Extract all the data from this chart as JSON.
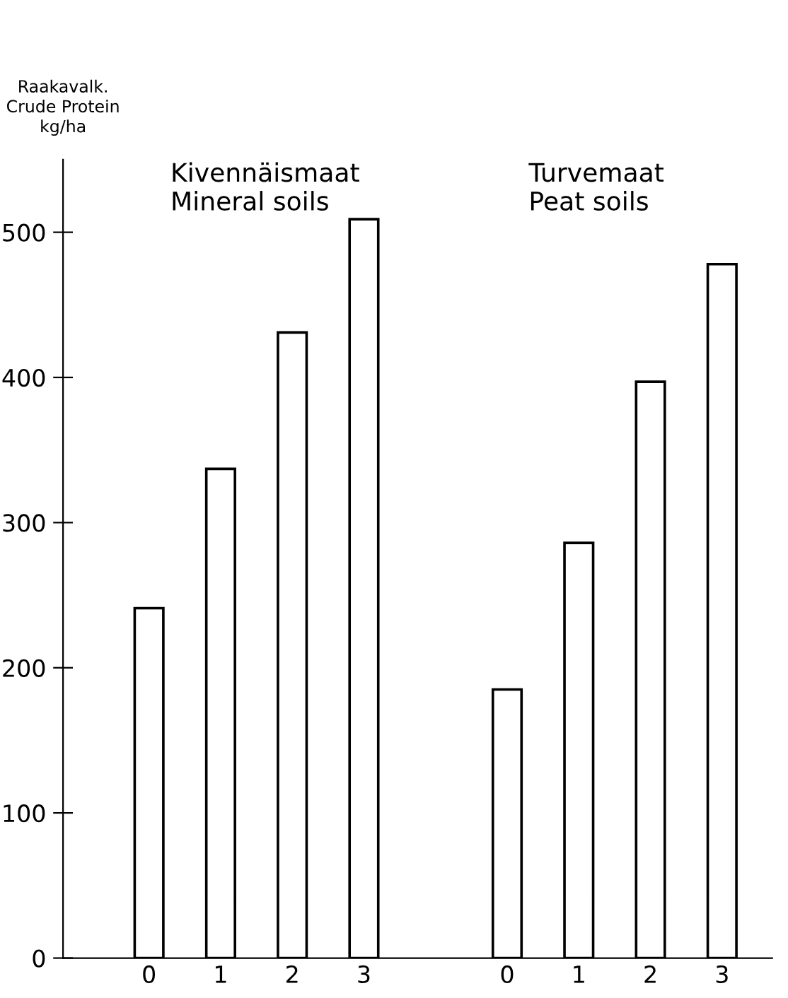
{
  "chart_data": {
    "type": "bar",
    "ylabel": "Raakavalk.\nCrude Protein\nkg/ha",
    "categories": [
      "0",
      "1",
      "2",
      "3",
      null,
      "0",
      "1",
      "2",
      "3"
    ],
    "values": [
      241,
      337,
      431,
      509,
      null,
      185,
      286,
      397,
      478
    ],
    "color": "#ffffff",
    "ylim": [
      0,
      550
    ],
    "yticks": [
      0,
      100,
      200,
      300,
      400,
      500
    ],
    "grid": false,
    "legend": false,
    "annotations": [
      "Kivennäismaat\nMineral soils",
      "Turvemaat\nPeat soils"
    ]
  }
}
